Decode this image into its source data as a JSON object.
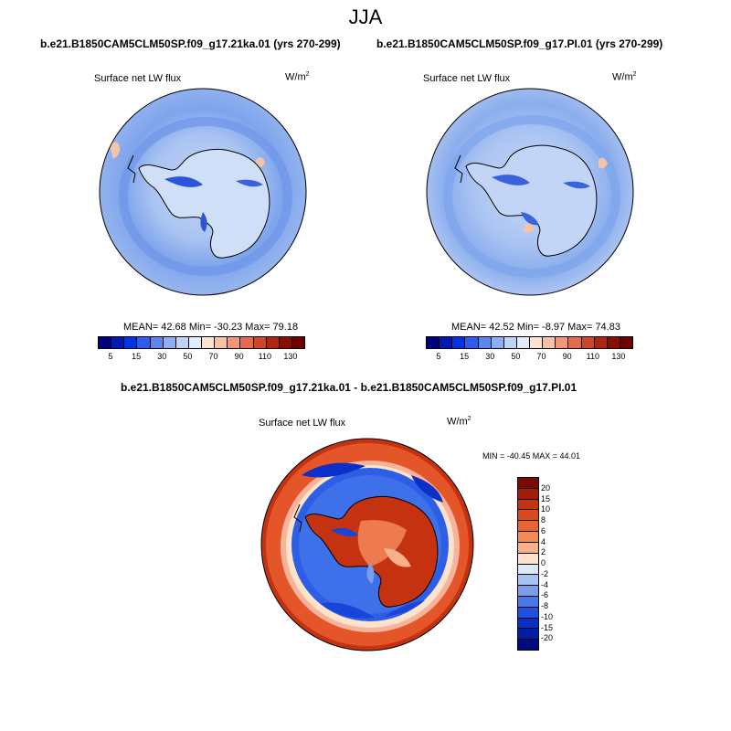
{
  "title": "JJA",
  "panels": [
    {
      "run": "b.e21.B1850CAM5CLM50SP.f09_g17.21ka.01 (yrs 270-299)",
      "variable": "Surface net LW flux",
      "units_base": "W/m",
      "units_exp": "2",
      "stats": "MEAN=  42.68  Min=  -30.23  Max=  79.18"
    },
    {
      "run": "b.e21.B1850CAM5CLM50SP.f09_g17.PI.01 (yrs 270-299)",
      "variable": "Surface net LW flux",
      "units_base": "W/m",
      "units_exp": "2",
      "stats": "MEAN=  42.52  Min=  -8.97  Max=  74.83"
    }
  ],
  "diff": {
    "title": "b.e21.B1850CAM5CLM50SP.f09_g17.21ka.01 - b.e21.B1850CAM5CLM50SP.f09_g17.PI.01",
    "variable": "Surface net LW flux",
    "units_base": "W/m",
    "units_exp": "2",
    "stats": "MIN = -40.45 MAX =  44.01"
  },
  "colorbar_h": {
    "ticks": [
      "5",
      "15",
      "30",
      "50",
      "70",
      "90",
      "110",
      "130"
    ],
    "colors": [
      "#00007f",
      "#0019b3",
      "#0033e6",
      "#2a5cf0",
      "#5a86f0",
      "#8caef5",
      "#bdd3f7",
      "#e2ecfb",
      "#fde4d2",
      "#f8c0a5",
      "#f29675",
      "#e46a49",
      "#d0442a",
      "#b02410",
      "#8b0c02",
      "#6e0000"
    ]
  },
  "colorbar_v": {
    "ticks": [
      "20",
      "15",
      "10",
      "8",
      "6",
      "4",
      "2",
      "0",
      "-2",
      "-4",
      "-6",
      "-8",
      "-10",
      "-15",
      "-20"
    ],
    "colors": [
      "#7a0a02",
      "#a31c06",
      "#c53210",
      "#dc4a1c",
      "#ea6430",
      "#f48a55",
      "#f8b08a",
      "#fde2cc",
      "#dde8f8",
      "#a9c3f0",
      "#7a9eea",
      "#4a78e6",
      "#2050e0",
      "#0a30c8",
      "#001da3",
      "#000a80"
    ]
  }
}
